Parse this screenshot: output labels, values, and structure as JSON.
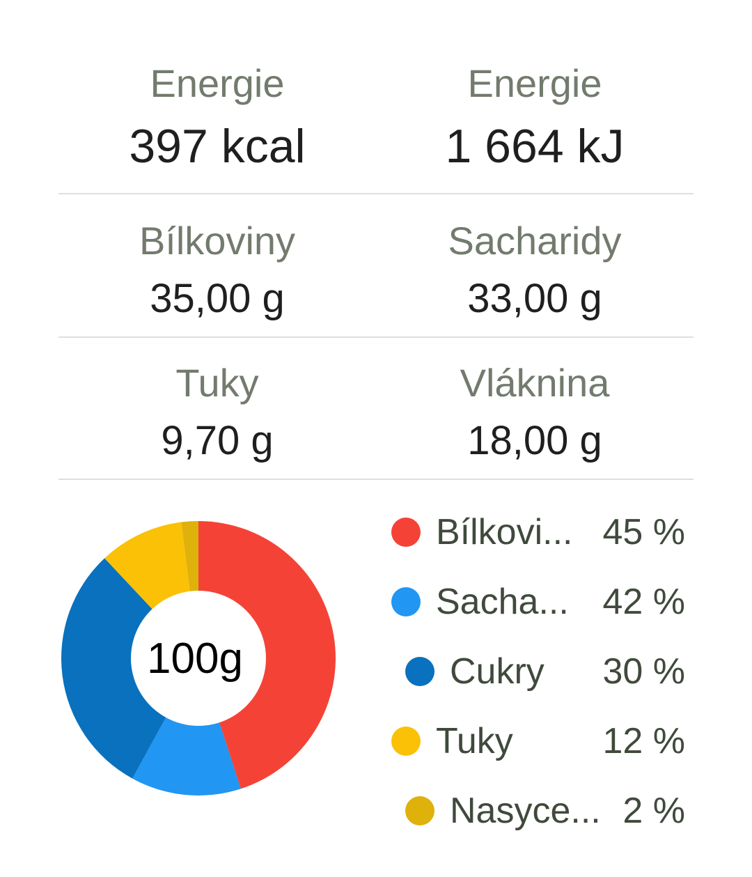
{
  "energy_kcal": {
    "label": "Energie",
    "value": "397 kcal"
  },
  "energy_kj": {
    "label": "Energie",
    "value": "1 664 kJ"
  },
  "protein": {
    "label": "Bílkoviny",
    "value": "35,00 g"
  },
  "carbs": {
    "label": "Sacharidy",
    "value": "33,00 g"
  },
  "fat": {
    "label": "Tuky",
    "value": "9,70 g"
  },
  "fiber": {
    "label": "Vláknina",
    "value": "18,00 g"
  },
  "chart_data": {
    "type": "pie",
    "center_label": "100g",
    "slices": [
      {
        "label": "Bílkovi...",
        "value": 45,
        "percent_text": "45 %",
        "color": "#f44336"
      },
      {
        "label": "Sacha...",
        "value": 13,
        "color": "#2196f3"
      },
      {
        "label": "Cukry",
        "value": 30,
        "percent_text": "30 %",
        "color": "#0971bd"
      },
      {
        "label": "Tuky",
        "value": 10,
        "percent_text": "12 %",
        "color": "#fbc107"
      },
      {
        "label": "Nasyce...",
        "value": 2,
        "percent_text": "2 %",
        "color": "#dfb10b"
      }
    ],
    "legend": [
      {
        "label": "Bílkovi...",
        "percent": "45 %",
        "color": "#f44336"
      },
      {
        "label": "Sacha...",
        "percent": "42 %",
        "color": "#2196f3"
      },
      {
        "label": "Cukry",
        "percent": "30 %",
        "color": "#0971bd"
      },
      {
        "label": "Tuky",
        "percent": "12 %",
        "color": "#fbc107"
      },
      {
        "label": "Nasyce...",
        "percent": "2 %",
        "color": "#dfb10b"
      }
    ]
  }
}
